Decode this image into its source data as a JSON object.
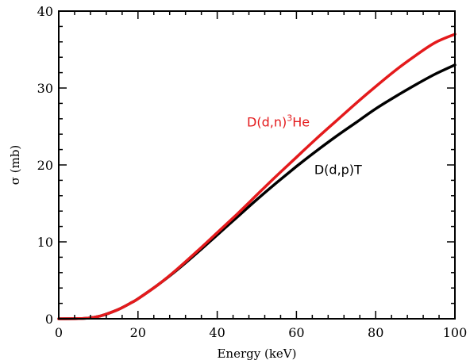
{
  "chart_data": {
    "type": "line",
    "xlabel": "Energy (keV)",
    "ylabel": "σ (mb)",
    "xlim": [
      0,
      100
    ],
    "ylim": [
      0,
      40
    ],
    "x_ticks": [
      0,
      20,
      40,
      60,
      80,
      100
    ],
    "y_ticks": [
      0,
      10,
      20,
      30,
      40
    ],
    "x_tick_labels": [
      "0",
      "20",
      "40",
      "60",
      "80",
      "100"
    ],
    "y_tick_labels": [
      "0",
      "10",
      "20",
      "30",
      "40"
    ],
    "grid": false,
    "series": [
      {
        "name": "D(d,n)³He",
        "color": "#e41a1c",
        "x": [
          0,
          5,
          8,
          10,
          12,
          15,
          18,
          20,
          25,
          30,
          35,
          40,
          45,
          50,
          55,
          60,
          65,
          70,
          75,
          80,
          85,
          90,
          95,
          100
        ],
        "y": [
          0,
          0.02,
          0.12,
          0.3,
          0.6,
          1.2,
          2.0,
          2.6,
          4.4,
          6.5,
          8.8,
          11.2,
          13.6,
          16.1,
          18.6,
          21.0,
          23.4,
          25.7,
          28.0,
          30.2,
          32.3,
          34.2,
          35.9,
          37.0
        ]
      },
      {
        "name": "D(d,p)T",
        "color": "#000000",
        "x": [
          0,
          5,
          8,
          10,
          12,
          15,
          18,
          20,
          25,
          30,
          35,
          40,
          45,
          50,
          55,
          60,
          65,
          70,
          75,
          80,
          85,
          90,
          95,
          100
        ],
        "y": [
          0,
          0.02,
          0.12,
          0.3,
          0.6,
          1.2,
          2.0,
          2.6,
          4.4,
          6.4,
          8.6,
          10.9,
          13.2,
          15.5,
          17.7,
          19.8,
          21.8,
          23.7,
          25.5,
          27.3,
          28.9,
          30.4,
          31.8,
          33.0
        ]
      }
    ],
    "annotations": [
      {
        "text_main": "D(d,n)",
        "sup": "3",
        "text_tail": "He",
        "color": "#e41a1c",
        "x": 47.5,
        "y": 25.0
      },
      {
        "text_main": "D(d,p)T",
        "sup": "",
        "text_tail": "",
        "color": "#000000",
        "x": 64.5,
        "y": 18.8
      }
    ]
  }
}
